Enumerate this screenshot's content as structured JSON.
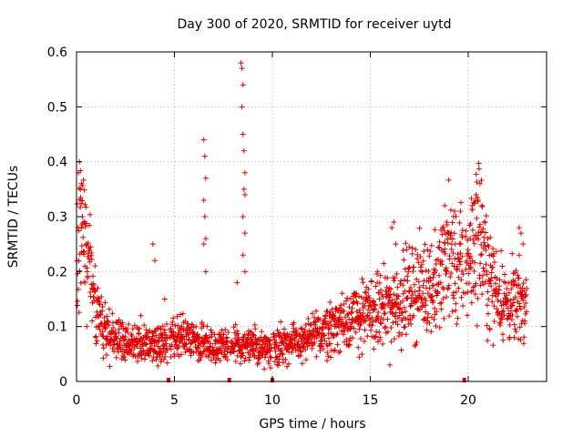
{
  "chart_data": {
    "type": "scatter",
    "title": "Day 300 of 2020, SRMTID for receiver uytd",
    "xlabel": "GPS time / hours",
    "ylabel": "SRMTID / TECUs",
    "xlim": [
      0,
      24
    ],
    "ylim": [
      0,
      0.6
    ],
    "xticks": [
      0,
      5,
      10,
      15,
      20
    ],
    "xtick_labels": [
      "0",
      "5",
      "10",
      "15",
      "20"
    ],
    "yticks": [
      0,
      0.1,
      0.2,
      0.3,
      0.4,
      0.5,
      0.6
    ],
    "ytick_labels": [
      "0",
      "0.1",
      "0.2",
      "0.3",
      "0.4",
      "0.5",
      "0.6"
    ],
    "grid": true,
    "marker": "+",
    "color": "#e00000",
    "series": [
      {
        "name": "SRMTID",
        "profile": [
          [
            0.0,
            0.2
          ],
          [
            0.3,
            0.32
          ],
          [
            0.6,
            0.22
          ],
          [
            1.0,
            0.13
          ],
          [
            1.5,
            0.09
          ],
          [
            2.5,
            0.07
          ],
          [
            3.5,
            0.07
          ],
          [
            4.5,
            0.07
          ],
          [
            5.5,
            0.08
          ],
          [
            6.5,
            0.07
          ],
          [
            7.5,
            0.06
          ],
          [
            8.5,
            0.07
          ],
          [
            9.5,
            0.06
          ],
          [
            10.5,
            0.07
          ],
          [
            11.5,
            0.07
          ],
          [
            12.5,
            0.09
          ],
          [
            13.5,
            0.11
          ],
          [
            14.5,
            0.12
          ],
          [
            15.5,
            0.13
          ],
          [
            16.5,
            0.15
          ],
          [
            17.5,
            0.17
          ],
          [
            18.5,
            0.18
          ],
          [
            19.0,
            0.24
          ],
          [
            19.5,
            0.2
          ],
          [
            20.0,
            0.22
          ],
          [
            20.5,
            0.28
          ],
          [
            21.0,
            0.19
          ],
          [
            22.0,
            0.14
          ],
          [
            23.0,
            0.14
          ]
        ],
        "points": [
          [
            0.1,
            0.38
          ],
          [
            0.15,
            0.4
          ],
          [
            0.2,
            0.35
          ],
          [
            0.25,
            0.36
          ],
          [
            0.3,
            0.3
          ],
          [
            0.4,
            0.29
          ],
          [
            0.5,
            0.25
          ],
          [
            3.9,
            0.25
          ],
          [
            4.0,
            0.22
          ],
          [
            4.5,
            0.15
          ],
          [
            6.5,
            0.44
          ],
          [
            6.55,
            0.41
          ],
          [
            6.6,
            0.37
          ],
          [
            6.5,
            0.33
          ],
          [
            6.55,
            0.3
          ],
          [
            6.6,
            0.26
          ],
          [
            6.5,
            0.25
          ],
          [
            6.6,
            0.2
          ],
          [
            8.4,
            0.58
          ],
          [
            8.45,
            0.57
          ],
          [
            8.5,
            0.54
          ],
          [
            8.45,
            0.5
          ],
          [
            8.5,
            0.45
          ],
          [
            8.55,
            0.42
          ],
          [
            8.6,
            0.38
          ],
          [
            8.55,
            0.35
          ],
          [
            8.6,
            0.34
          ],
          [
            8.5,
            0.3
          ],
          [
            8.6,
            0.27
          ],
          [
            8.5,
            0.23
          ],
          [
            8.6,
            0.2
          ],
          [
            8.2,
            0.18
          ],
          [
            16.0,
            0.03
          ],
          [
            16.1,
            0.28
          ],
          [
            16.2,
            0.29
          ],
          [
            16.3,
            0.25
          ],
          [
            18.8,
            0.32
          ],
          [
            18.9,
            0.29
          ],
          [
            19.0,
            0.27
          ],
          [
            19.6,
            0.31
          ],
          [
            20.2,
            0.32
          ],
          [
            20.4,
            0.34
          ],
          [
            20.5,
            0.33
          ],
          [
            20.6,
            0.36
          ],
          [
            20.7,
            0.32
          ],
          [
            21.0,
            0.26
          ],
          [
            22.6,
            0.28
          ],
          [
            22.7,
            0.27
          ],
          [
            22.8,
            0.25
          ]
        ]
      }
    ],
    "gap_markers": [
      4.7,
      7.8,
      10.0,
      19.8
    ]
  }
}
